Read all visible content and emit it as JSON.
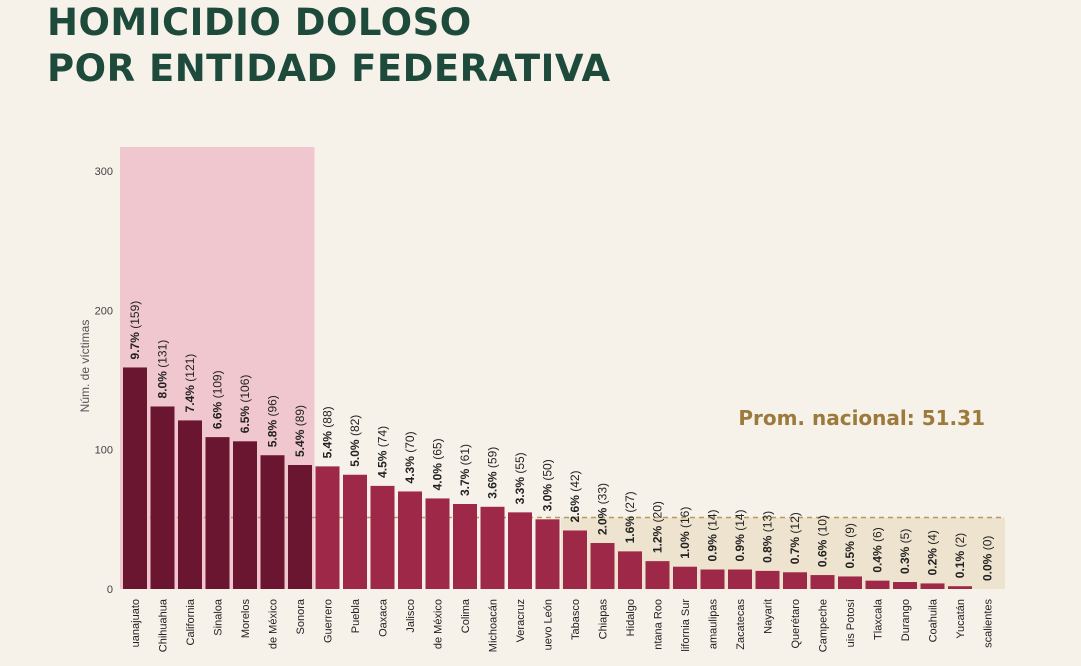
{
  "title_line1": "HOMICIDIO DOLOSO",
  "title_line2": "POR ENTIDAD FEDERATIVA",
  "colors": {
    "title": "#1e4a3c",
    "bar_top": "#6b1630",
    "bar": "#9e2847",
    "highlight_band": "#f0c7cf",
    "avg_band": "#ede3cf",
    "avg_text": "#9b7a3c"
  },
  "chart_data": {
    "type": "bar",
    "ylabel": "Núm. de víctimas",
    "ylim": [
      0,
      300
    ],
    "yticks": [
      0,
      100,
      200,
      300
    ],
    "average_label": "Prom. nacional: 51.31",
    "average_value": 51.31,
    "highlighted_count": 7,
    "categories": [
      "uanajuato",
      "Chihuahua",
      "California",
      "Sinaloa",
      "Morelos",
      "de México",
      "Sonora",
      "Guerrero",
      "Puebla",
      "Oaxaca",
      "Jalisco",
      "de México",
      "Colima",
      "Michoacán",
      "Veracruz",
      "uevo León",
      "Tabasco",
      "Chiapas",
      "Hidalgo",
      "ntana Roo",
      "lifornia Sur",
      "amaulipas",
      "Zacatecas",
      "Nayarit",
      "Querétaro",
      "Campeche",
      "uis Potosí",
      "Tlaxcala",
      "Durango",
      "Coahuila",
      "Yucatán",
      "scalientes"
    ],
    "values": [
      159,
      131,
      121,
      109,
      106,
      96,
      89,
      88,
      82,
      74,
      70,
      65,
      61,
      59,
      55,
      50,
      42,
      33,
      27,
      20,
      16,
      14,
      14,
      13,
      12,
      10,
      9,
      6,
      5,
      4,
      2,
      0
    ],
    "percent_labels": [
      "9.7%",
      "8.0%",
      "7.4%",
      "6.6%",
      "6.5%",
      "5.8%",
      "5.4%",
      "5.4%",
      "5.0%",
      "4.5%",
      "4.3%",
      "4.0%",
      "3.7%",
      "3.6%",
      "3.3%",
      "3.0%",
      "2.6%",
      "2.0%",
      "1.6%",
      "1.2%",
      "1.0%",
      "0.9%",
      "0.9%",
      "0.8%",
      "0.7%",
      "0.6%",
      "0.5%",
      "0.4%",
      "0.3%",
      "0.2%",
      "0.1%",
      "0.0%"
    ],
    "count_labels": [
      "(159)",
      "(131)",
      "(121)",
      "(109)",
      "(106)",
      "(96)",
      "(89)",
      "(88)",
      "(82)",
      "(74)",
      "(70)",
      "(65)",
      "(61)",
      "(59)",
      "(55)",
      "(50)",
      "(42)",
      "(33)",
      "(27)",
      "(20)",
      "(16)",
      "(14)",
      "(14)",
      "(13)",
      "(12)",
      "(10)",
      "(9)",
      "(6)",
      "(5)",
      "(4)",
      "(2)",
      "(0)"
    ]
  }
}
